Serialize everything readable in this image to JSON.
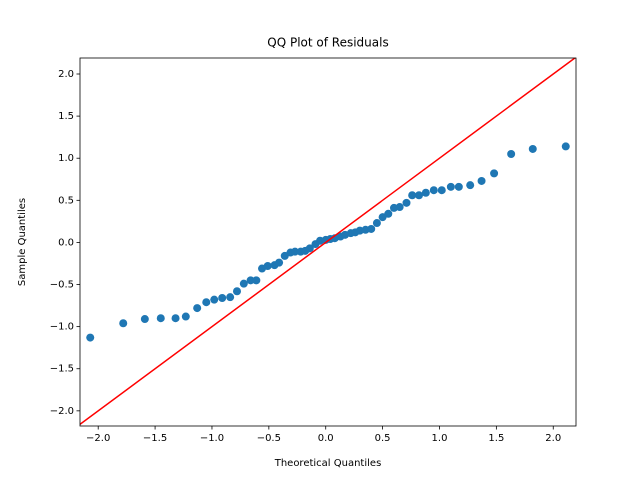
{
  "chart_data": {
    "type": "scatter",
    "title": "QQ Plot of Residuals",
    "x_label": "Theoretical Quantiles",
    "y_label": "Sample Quantiles",
    "color": "#1f77b4",
    "reference_line_color": "#ff0000",
    "xlim": [
      -2.16,
      2.2
    ],
    "ylim": [
      -2.18,
      2.19
    ],
    "xticks": [
      {
        "value": -2,
        "label": "−2.0"
      },
      {
        "value": -1.5,
        "label": "−1.5"
      },
      {
        "value": -1,
        "label": "−1.0"
      },
      {
        "value": -0.5,
        "label": "−0.5"
      },
      {
        "value": 0,
        "label": "0.0"
      },
      {
        "value": 0.5,
        "label": "0.5"
      },
      {
        "value": 1,
        "label": "1.0"
      },
      {
        "value": 1.5,
        "label": "1.5"
      },
      {
        "value": 2,
        "label": "2.0"
      }
    ],
    "yticks": [
      {
        "value": -2,
        "label": "−2.0"
      },
      {
        "value": -1.5,
        "label": "−1.5"
      },
      {
        "value": -1,
        "label": "−1.0"
      },
      {
        "value": -0.5,
        "label": "−0.5"
      },
      {
        "value": 0,
        "label": "0.0"
      },
      {
        "value": 0.5,
        "label": "0.5"
      },
      {
        "value": 1,
        "label": "1.0"
      },
      {
        "value": 1.5,
        "label": "1.5"
      },
      {
        "value": 2,
        "label": "2.0"
      }
    ],
    "x": [
      -2.07,
      -1.78,
      -1.59,
      -1.45,
      -1.32,
      -1.23,
      -1.13,
      -1.05,
      -0.98,
      -0.91,
      -0.84,
      -0.78,
      -0.72,
      -0.66,
      -0.61,
      -0.56,
      -0.51,
      -0.45,
      -0.41,
      -0.36,
      -0.31,
      -0.27,
      -0.22,
      -0.18,
      -0.14,
      -0.09,
      -0.05,
      0.0,
      0.04,
      0.08,
      0.13,
      0.17,
      0.22,
      0.26,
      0.3,
      0.35,
      0.4,
      0.45,
      0.5,
      0.55,
      0.6,
      0.65,
      0.71,
      0.76,
      0.82,
      0.88,
      0.95,
      1.02,
      1.1,
      1.17,
      1.27,
      1.37,
      1.48,
      1.63,
      1.82,
      2.11
    ],
    "values": [
      -1.13,
      -0.96,
      -0.91,
      -0.9,
      -0.9,
      -0.88,
      -0.78,
      -0.71,
      -0.68,
      -0.66,
      -0.65,
      -0.58,
      -0.49,
      -0.45,
      -0.45,
      -0.31,
      -0.28,
      -0.27,
      -0.24,
      -0.16,
      -0.12,
      -0.11,
      -0.11,
      -0.1,
      -0.07,
      -0.02,
      0.02,
      0.03,
      0.04,
      0.05,
      0.07,
      0.09,
      0.11,
      0.12,
      0.14,
      0.15,
      0.16,
      0.23,
      0.3,
      0.34,
      0.41,
      0.42,
      0.47,
      0.56,
      0.56,
      0.59,
      0.62,
      0.62,
      0.66,
      0.66,
      0.68,
      0.73,
      0.82,
      1.05,
      1.11,
      1.14
    ]
  }
}
